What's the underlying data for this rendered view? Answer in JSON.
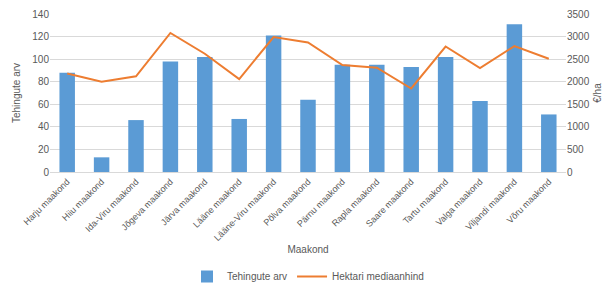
{
  "chart_data": {
    "type": "bar",
    "x_label": "Maakond",
    "y_label": "Tehingute arv",
    "y2_label": "€/ha",
    "categories": [
      "Harju maakond",
      "Hiiu maakond",
      "Ida-Viru maakond",
      "Jõgeva maakond",
      "Järva maakond",
      "Lääne maakond",
      "Lääne-Viru maakond",
      "Põlva maakond",
      "Pärnu maakond",
      "Rapla maakond",
      "Saare maakond",
      "Tartu maakond",
      "Valga maakond",
      "Viljandi maakond",
      "Võru maakond"
    ],
    "series": [
      {
        "name": "Tehingute arv",
        "type": "bar",
        "color": "#5b9bd5",
        "values": [
          88,
          13,
          46,
          98,
          102,
          47,
          121,
          64,
          95,
          95,
          93,
          102,
          63,
          131,
          51
        ]
      },
      {
        "name": "Hektari mediaanhind",
        "type": "line",
        "color": "#ed7d31",
        "axis": "y2",
        "values": [
          2180,
          2000,
          2120,
          3080,
          2620,
          2060,
          2990,
          2870,
          2370,
          2310,
          1850,
          2780,
          2300,
          2790,
          2510
        ]
      }
    ],
    "ylim": [
      0,
      140
    ],
    "yticks": [
      0,
      20,
      40,
      60,
      80,
      100,
      120,
      140
    ],
    "y2lim": [
      0,
      3500
    ],
    "y2ticks": [
      0,
      500,
      1000,
      1500,
      2000,
      2500,
      3000,
      3500
    ],
    "grid": true,
    "legend": "bottom"
  }
}
